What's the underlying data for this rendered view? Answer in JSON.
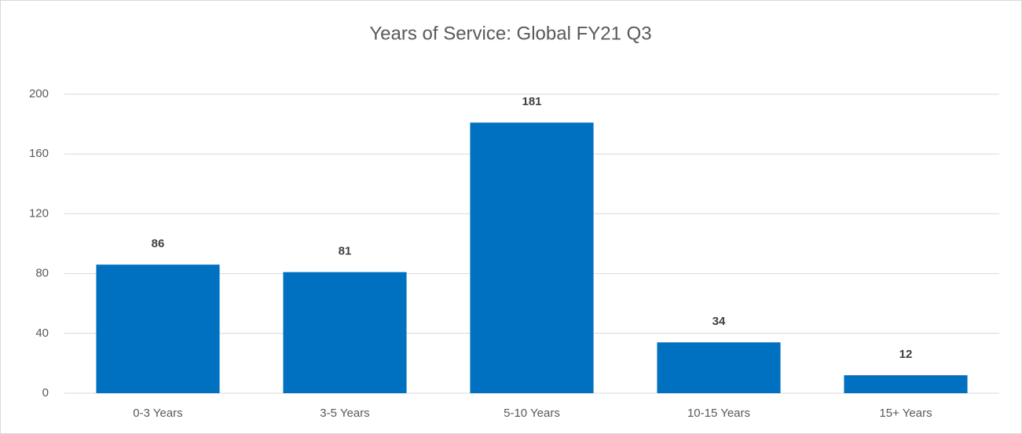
{
  "chart_data": {
    "type": "bar",
    "title": "Years of Service: Global FY21 Q3",
    "categories": [
      "0-3 Years",
      "3-5 Years",
      "5-10 Years",
      "10-15 Years",
      "15+ Years"
    ],
    "values": [
      86,
      81,
      181,
      34,
      12
    ],
    "color": "#0070c0",
    "ylim": [
      0,
      200
    ],
    "yticks": [
      0,
      40,
      80,
      120,
      160,
      200
    ],
    "grid": true
  }
}
